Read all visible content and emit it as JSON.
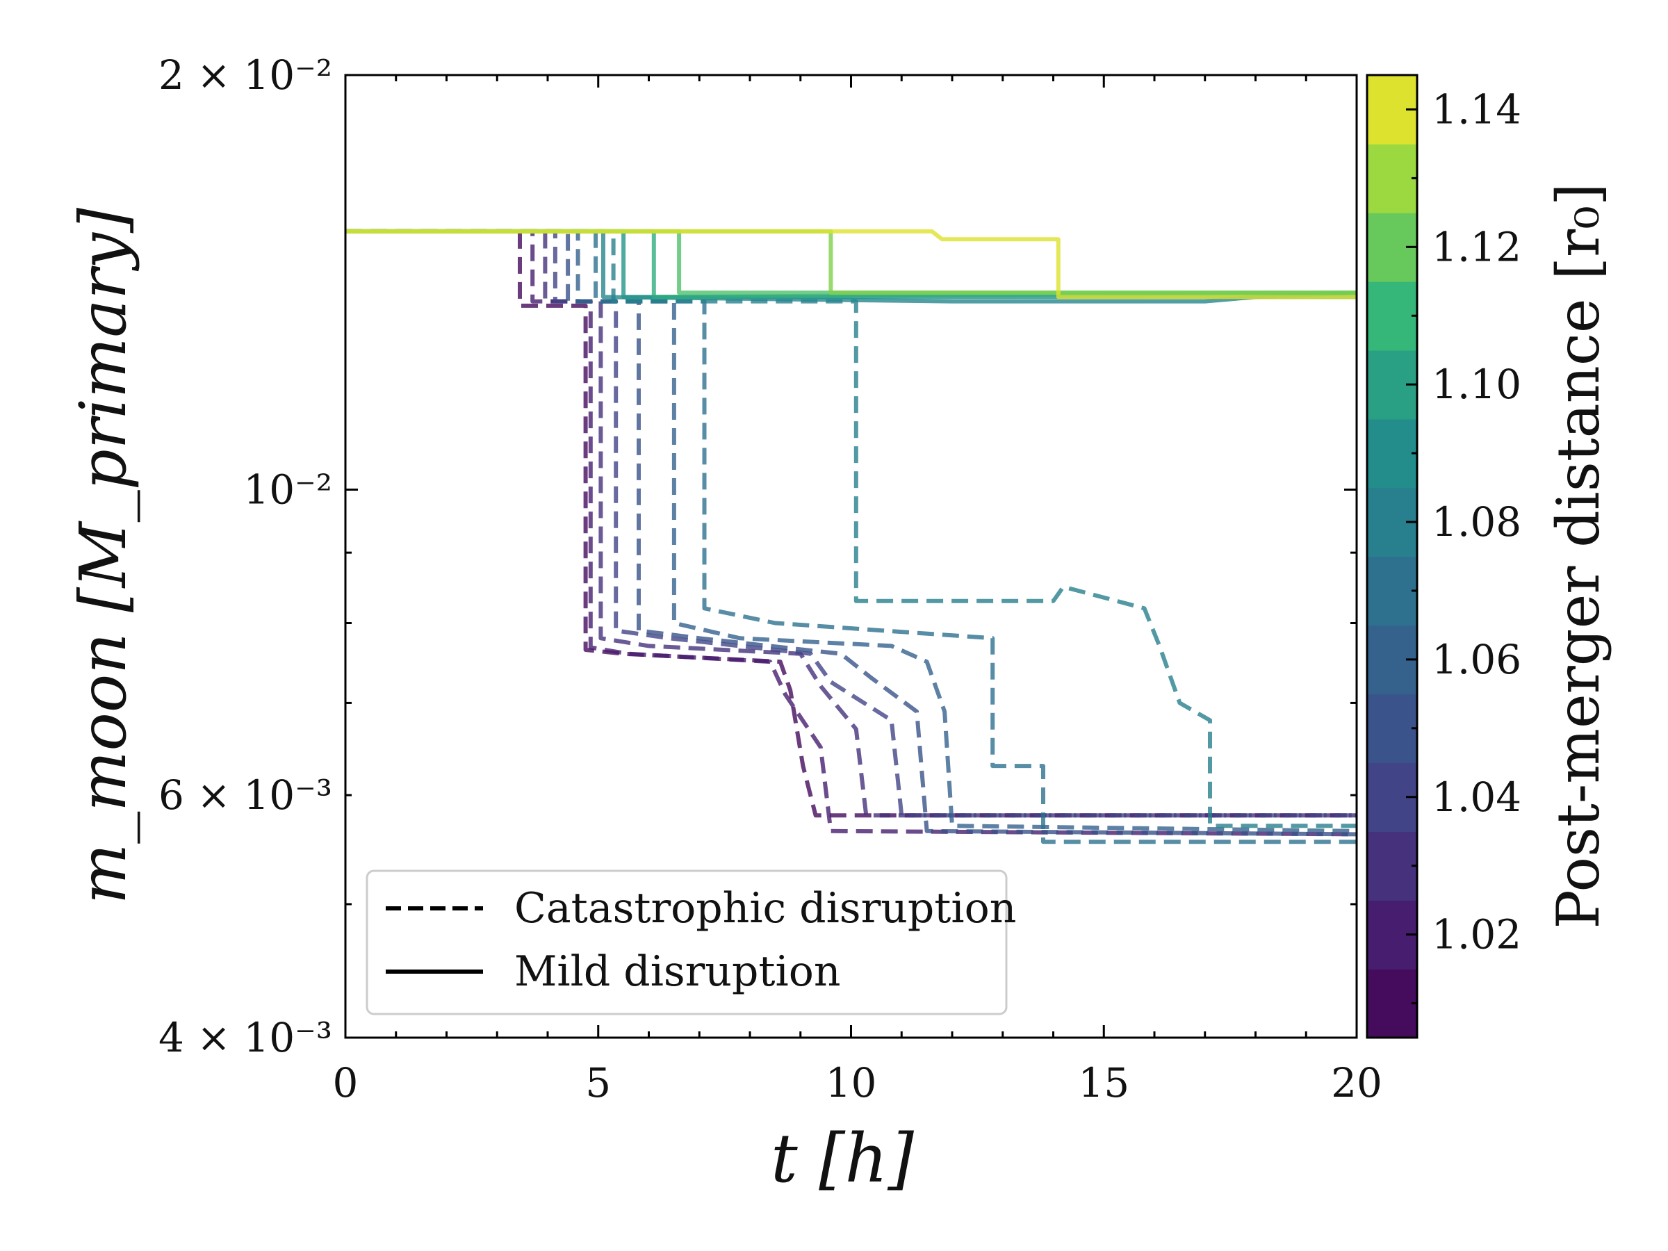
{
  "chart_data": {
    "type": "line",
    "xlabel": "t [h]",
    "ylabel": "m_moon [M_primary]",
    "xlim": [
      0,
      20
    ],
    "ylim": [
      0.004,
      0.02
    ],
    "yscale": "log",
    "x_ticks": [
      "0",
      "5",
      "10",
      "15",
      "20"
    ],
    "y_ticks": [
      {
        "value": 0.02,
        "label": "2 × 10⁻²"
      },
      {
        "value": 0.01,
        "label": "10⁻²"
      },
      {
        "value": 0.006,
        "label": "6 × 10⁻³"
      },
      {
        "value": 0.004,
        "label": "4 × 10⁻³"
      }
    ],
    "legend": [
      {
        "label": "Catastrophic disruption",
        "style": "dashed"
      },
      {
        "label": "Mild disruption",
        "style": "solid"
      }
    ],
    "colorbar": {
      "label": "Post-merger distance [r₀]",
      "min": 1.005,
      "max": 1.145,
      "ticks": [
        "1.02",
        "1.04",
        "1.06",
        "1.08",
        "1.10",
        "1.12",
        "1.14"
      ],
      "tick_values": [
        1.02,
        1.04,
        1.06,
        1.08,
        1.1,
        1.12,
        1.14
      ]
    },
    "series": [
      {
        "name": "catastrophic r0=1.010",
        "d": 1.01,
        "style": "dashed",
        "points": [
          [
            0,
            0.0154
          ],
          [
            3.45,
            0.0154
          ],
          [
            3.45,
            0.0136
          ],
          [
            4.75,
            0.0136
          ],
          [
            4.75,
            0.00765
          ],
          [
            5.5,
            0.0076
          ],
          [
            8.6,
            0.0075
          ],
          [
            8.8,
            0.00715
          ],
          [
            9.05,
            0.0063
          ],
          [
            9.3,
            0.0058
          ],
          [
            20,
            0.0058
          ]
        ]
      },
      {
        "name": "catastrophic r0=1.020",
        "d": 1.02,
        "style": "dashed",
        "points": [
          [
            0,
            0.0154
          ],
          [
            3.7,
            0.0154
          ],
          [
            3.7,
            0.0137
          ],
          [
            4.85,
            0.0137
          ],
          [
            4.85,
            0.00768
          ],
          [
            5.6,
            0.0076
          ],
          [
            8.4,
            0.0075
          ],
          [
            8.7,
            0.0071
          ],
          [
            9.4,
            0.0065
          ],
          [
            9.6,
            0.00565
          ],
          [
            20,
            0.00562
          ]
        ]
      },
      {
        "name": "catastrophic r0=1.030",
        "d": 1.03,
        "style": "dashed",
        "points": [
          [
            0,
            0.0154
          ],
          [
            3.95,
            0.0154
          ],
          [
            3.95,
            0.0137
          ],
          [
            5.05,
            0.0137
          ],
          [
            5.05,
            0.0078
          ],
          [
            6.0,
            0.0077
          ],
          [
            9.0,
            0.0076
          ],
          [
            9.4,
            0.0072
          ],
          [
            10.1,
            0.0067
          ],
          [
            10.3,
            0.0058
          ],
          [
            20,
            0.0058
          ]
        ]
      },
      {
        "name": "catastrophic r0=1.040",
        "d": 1.04,
        "style": "dashed",
        "points": [
          [
            0,
            0.0154
          ],
          [
            4.15,
            0.0154
          ],
          [
            4.15,
            0.0137
          ],
          [
            5.35,
            0.0137
          ],
          [
            5.35,
            0.0079
          ],
          [
            6.4,
            0.0078
          ],
          [
            9.2,
            0.0076
          ],
          [
            9.6,
            0.00725
          ],
          [
            10.8,
            0.0068
          ],
          [
            11.0,
            0.0058
          ],
          [
            20,
            0.0058
          ]
        ]
      },
      {
        "name": "catastrophic r0=1.050",
        "d": 1.05,
        "style": "dashed",
        "points": [
          [
            0,
            0.0154
          ],
          [
            4.4,
            0.0154
          ],
          [
            4.4,
            0.0137
          ],
          [
            5.8,
            0.0137
          ],
          [
            5.8,
            0.0079
          ],
          [
            7.0,
            0.0078
          ],
          [
            9.8,
            0.0076
          ],
          [
            10.4,
            0.0073
          ],
          [
            11.3,
            0.0069
          ],
          [
            11.5,
            0.00565
          ],
          [
            20,
            0.00562
          ]
        ]
      },
      {
        "name": "catastrophic r0=1.060",
        "d": 1.06,
        "style": "dashed",
        "points": [
          [
            0,
            0.0154
          ],
          [
            4.6,
            0.0154
          ],
          [
            4.6,
            0.0137
          ],
          [
            6.5,
            0.0137
          ],
          [
            6.5,
            0.008
          ],
          [
            7.8,
            0.0078
          ],
          [
            10.8,
            0.0077
          ],
          [
            11.5,
            0.0075
          ],
          [
            11.85,
            0.0069
          ],
          [
            12.0,
            0.0057
          ],
          [
            20,
            0.00565
          ]
        ]
      },
      {
        "name": "catastrophic r0=1.070",
        "d": 1.07,
        "style": "dashed",
        "points": [
          [
            0,
            0.0154
          ],
          [
            4.95,
            0.0154
          ],
          [
            4.95,
            0.0137
          ],
          [
            7.1,
            0.0137
          ],
          [
            7.1,
            0.0082
          ],
          [
            8.5,
            0.008
          ],
          [
            12.8,
            0.0078
          ],
          [
            12.8,
            0.0063
          ],
          [
            13.8,
            0.0063
          ],
          [
            13.8,
            0.00555
          ],
          [
            20,
            0.00555
          ]
        ]
      },
      {
        "name": "catastrophic r0=1.080",
        "d": 1.08,
        "style": "dashed",
        "points": [
          [
            0,
            0.0154
          ],
          [
            5.3,
            0.0154
          ],
          [
            5.3,
            0.0137
          ],
          [
            10.1,
            0.0137
          ],
          [
            10.1,
            0.0083
          ],
          [
            14.0,
            0.0083
          ],
          [
            14.2,
            0.0085
          ],
          [
            15.8,
            0.0082
          ],
          [
            16.1,
            0.0077
          ],
          [
            16.5,
            0.007
          ],
          [
            17.1,
            0.0068
          ],
          [
            17.1,
            0.0057
          ],
          [
            20,
            0.0057
          ]
        ]
      },
      {
        "name": "mild r0=1.085",
        "d": 1.085,
        "style": "solid",
        "points": [
          [
            0,
            0.0154
          ],
          [
            5.1,
            0.0154
          ],
          [
            5.1,
            0.0138
          ],
          [
            12.0,
            0.0137
          ],
          [
            17.0,
            0.0137
          ],
          [
            18.0,
            0.0138
          ],
          [
            20,
            0.0139
          ]
        ]
      },
      {
        "name": "mild r0=1.095",
        "d": 1.095,
        "style": "solid",
        "points": [
          [
            0,
            0.0154
          ],
          [
            5.5,
            0.0154
          ],
          [
            5.5,
            0.0138
          ],
          [
            20,
            0.0138
          ]
        ]
      },
      {
        "name": "mild r0=1.105",
        "d": 1.105,
        "style": "solid",
        "points": [
          [
            0,
            0.0154
          ],
          [
            6.1,
            0.0154
          ],
          [
            6.1,
            0.0138
          ],
          [
            20,
            0.0139
          ]
        ]
      },
      {
        "name": "mild r0=1.115",
        "d": 1.115,
        "style": "solid",
        "points": [
          [
            0,
            0.0154
          ],
          [
            6.6,
            0.0154
          ],
          [
            6.6,
            0.0139
          ],
          [
            20,
            0.0139
          ]
        ]
      },
      {
        "name": "mild r0=1.125",
        "d": 1.125,
        "style": "solid",
        "points": [
          [
            0,
            0.0154
          ],
          [
            9.6,
            0.0154
          ],
          [
            9.6,
            0.0139
          ],
          [
            20,
            0.0139
          ]
        ]
      },
      {
        "name": "mild r0=1.140",
        "d": 1.14,
        "style": "solid",
        "points": [
          [
            0,
            0.0154
          ],
          [
            11.6,
            0.0154
          ],
          [
            11.8,
            0.0152
          ],
          [
            14.1,
            0.0152
          ],
          [
            14.1,
            0.0138
          ],
          [
            20,
            0.0138
          ]
        ]
      }
    ]
  }
}
